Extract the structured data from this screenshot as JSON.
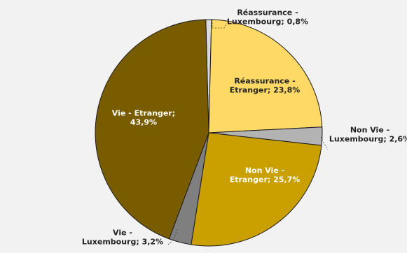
{
  "chart_data": {
    "type": "pie",
    "title": "",
    "start_angle_deg": -1.5,
    "slices": [
      {
        "key": "reass_lux",
        "label_lines": [
          "Réassurance -",
          "Luxembourg; 0,8%"
        ],
        "value": 0.8,
        "color": "#d9d9d9",
        "label_color": "#222222",
        "leader": true
      },
      {
        "key": "reass_etr",
        "label_lines": [
          "Réassurance -",
          "Etranger; 23,8%"
        ],
        "value": 23.8,
        "color": "#ffd966",
        "label_color": "#222222",
        "leader": false
      },
      {
        "key": "nonvie_lux",
        "label_lines": [
          "Non Vie -",
          "Luxembourg; 2,6%"
        ],
        "value": 2.6,
        "color": "#b3b3b3",
        "label_color": "#222222",
        "leader": true
      },
      {
        "key": "nonvie_etr",
        "label_lines": [
          "Non Vie -",
          "Etranger; 25,7%"
        ],
        "value": 25.7,
        "color": "#c9a000",
        "label_color": "#ffffff",
        "leader": false
      },
      {
        "key": "vie_lux",
        "label_lines": [
          "Vie -",
          "Luxembourg; 3,2%"
        ],
        "value": 3.2,
        "color": "#7f7f7f",
        "label_color": "#222222",
        "leader": true
      },
      {
        "key": "vie_etr",
        "label_lines": [
          "Vie - Etranger;",
          "43,9%"
        ],
        "value": 43.9,
        "color": "#7a5c00",
        "label_color": "#ffffff",
        "leader": false
      }
    ],
    "legend": "none"
  }
}
